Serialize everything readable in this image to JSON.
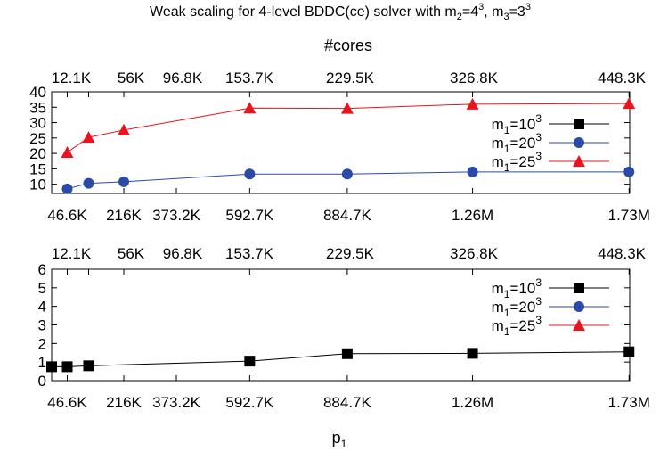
{
  "figure": {
    "title_prefix": "Weak scaling for 4-level BDDC(ce) solver with m",
    "title_m2_sub": "2",
    "title_m2_eq": "=4",
    "title_m2_sup": "3",
    "title_sep": ", m",
    "title_m3_sub": "3",
    "title_m3_eq": "=3",
    "title_m3_sup": "3"
  },
  "chart_data": [
    {
      "type": "line",
      "x2label": "#cores",
      "x2_ticks": [
        "12.1K",
        "56K",
        "96.8K",
        "153.7K",
        "229.5K",
        "326.8K",
        "448.3K"
      ],
      "x_ticks": [
        "46.6K",
        "216K",
        "373.2K",
        "592.7K",
        "884.7K",
        "1.26M",
        "1.73M"
      ],
      "xlim": [
        0,
        1730000
      ],
      "ylim": [
        7,
        40
      ],
      "y_ticks": [
        10,
        15,
        20,
        25,
        30,
        35,
        40
      ],
      "legend_position": "right",
      "series": [
        {
          "name_base": "m",
          "name_sub": "1",
          "name_rest": "=10",
          "name_sup": "3",
          "marker": "square",
          "color": "#000000",
          "x": [],
          "y": []
        },
        {
          "name_base": "m",
          "name_sub": "1",
          "name_rest": "=20",
          "name_sup": "3",
          "marker": "circle",
          "color": "#2b4aa8",
          "x": [
            46656,
            110592,
            216000,
            592704,
            884736,
            1259712,
            1728000
          ],
          "y": [
            8.5,
            10.3,
            10.8,
            13.3,
            13.3,
            14.0,
            14.0
          ]
        },
        {
          "name_base": "m",
          "name_sub": "1",
          "name_rest": "=25",
          "name_sup": "3",
          "marker": "triangle",
          "color": "#e8141e",
          "x": [
            46656,
            110592,
            216000,
            592704,
            884736,
            1259712,
            1728000
          ],
          "y": [
            20.3,
            25.2,
            27.6,
            34.7,
            34.6,
            36.0,
            36.2
          ]
        }
      ]
    },
    {
      "type": "line",
      "xlabel_base": "p",
      "xlabel_sub": "1",
      "x2_ticks": [
        "12.1K",
        "56K",
        "96.8K",
        "153.7K",
        "229.5K",
        "326.8K",
        "448.3K"
      ],
      "x_ticks": [
        "46.6K",
        "216K",
        "373.2K",
        "592.7K",
        "884.7K",
        "1.26M",
        "1.73M"
      ],
      "xlim": [
        0,
        1730000
      ],
      "ylim": [
        0,
        6
      ],
      "y_ticks": [
        0,
        1,
        2,
        3,
        4,
        5,
        6
      ],
      "legend_position": "top-right",
      "series": [
        {
          "name_base": "m",
          "name_sub": "1",
          "name_rest": "=10",
          "name_sup": "3",
          "marker": "square",
          "color": "#000000",
          "x": [
            0,
            46656,
            110592,
            592704,
            884736,
            1259712,
            1728000
          ],
          "y": [
            0.75,
            0.75,
            0.8,
            1.05,
            1.45,
            1.47,
            1.55
          ]
        },
        {
          "name_base": "m",
          "name_sub": "1",
          "name_rest": "=20",
          "name_sup": "3",
          "marker": "circle",
          "color": "#2b4aa8",
          "x": [],
          "y": []
        },
        {
          "name_base": "m",
          "name_sub": "1",
          "name_rest": "=25",
          "name_sup": "3",
          "marker": "triangle",
          "color": "#e8141e",
          "x": [],
          "y": []
        }
      ]
    }
  ]
}
